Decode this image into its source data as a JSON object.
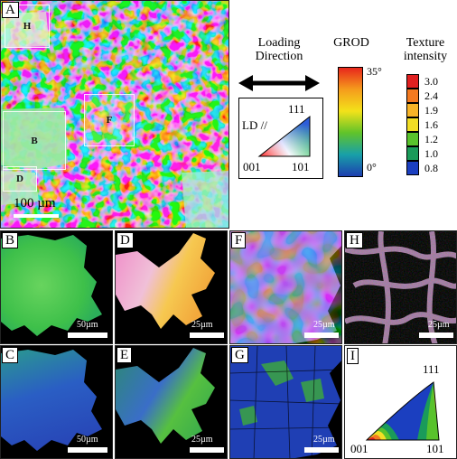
{
  "panel_a": {
    "label": "A",
    "scale_text": "100 µm",
    "regions": [
      {
        "label": "H"
      },
      {
        "label": "F"
      },
      {
        "label": "B"
      },
      {
        "label": "D"
      }
    ]
  },
  "legend": {
    "loading_direction": [
      "Loading",
      "Direction"
    ],
    "ld_label": "LD //",
    "ipf_corners": {
      "top": "111",
      "left": "001",
      "right": "101"
    },
    "grod_title": "GROD",
    "grod_max": "35°",
    "grod_min": "0°",
    "texture_title": [
      "Texture",
      "intensity"
    ],
    "texture_levels": [
      "3.0",
      "2.4",
      "1.9",
      "1.6",
      "1.2",
      "1.0",
      "0.8"
    ],
    "grod_colors": [
      "#e8261c",
      "#f59c1c",
      "#f3e21a",
      "#60c32a",
      "#18a0a8",
      "#1d3fb0"
    ],
    "texture_colors": [
      "#e02020",
      "#f47a20",
      "#f7b428",
      "#f2de25",
      "#58c22c",
      "#1a9b5a",
      "#1b3fc0"
    ]
  },
  "panels": [
    {
      "key": "B",
      "label": "B",
      "scale": "50µm"
    },
    {
      "key": "D",
      "label": "D",
      "scale": "25µm"
    },
    {
      "key": "F",
      "label": "F",
      "scale": "25µm"
    },
    {
      "key": "H",
      "label": "H",
      "scale": "25µm"
    },
    {
      "key": "C",
      "label": "C",
      "scale": "50µm"
    },
    {
      "key": "E",
      "label": "E",
      "scale": "25µm"
    },
    {
      "key": "G",
      "label": "G",
      "scale": "25µm"
    },
    {
      "key": "I",
      "label": "I",
      "scale": ""
    }
  ],
  "panel_i": {
    "corners": {
      "top": "111",
      "left": "001",
      "right": "101"
    }
  }
}
